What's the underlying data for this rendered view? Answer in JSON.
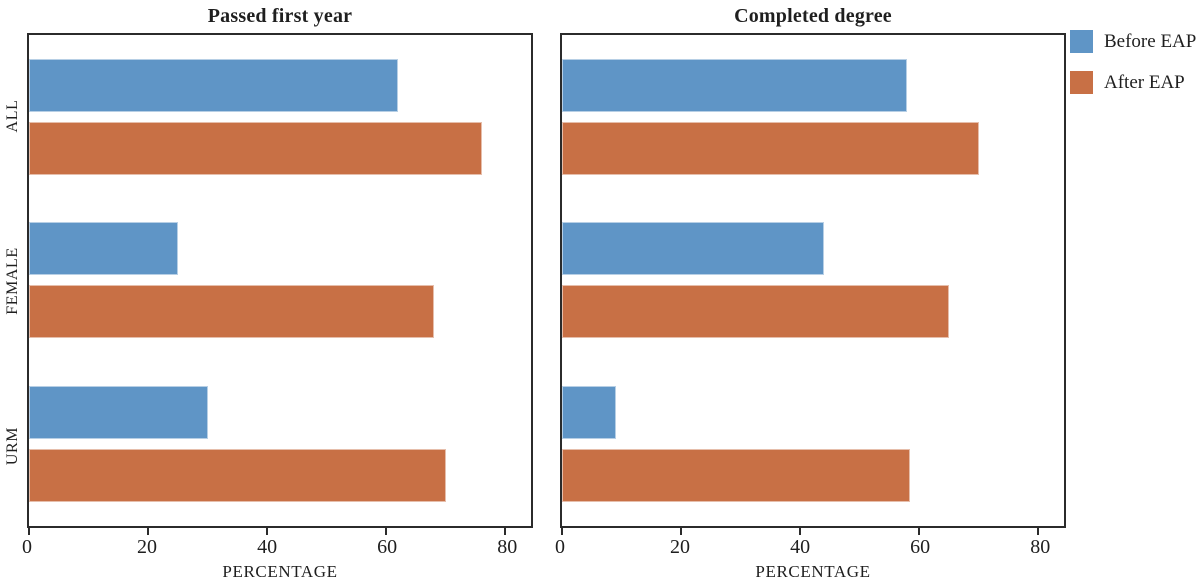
{
  "figure": {
    "legend": [
      {
        "label": "Before EAP",
        "color": "#5F95C6"
      },
      {
        "label": "After EAP",
        "color": "#C87045"
      }
    ],
    "legend_position": "outside upper right"
  },
  "chart_data": [
    {
      "type": "bar",
      "orientation": "horizontal",
      "title": "Passed first year",
      "categories": [
        "ALL",
        "FEMALE",
        "URM"
      ],
      "series": [
        {
          "name": "Before EAP",
          "color": "#5F95C6",
          "values": [
            62,
            25,
            30
          ]
        },
        {
          "name": "After EAP",
          "color": "#C87045",
          "values": [
            76,
            68,
            70
          ]
        }
      ],
      "xlabel": "PERCENTAGE",
      "xlim": [
        0,
        84.3
      ],
      "xticks": [
        0,
        20,
        40,
        60,
        80
      ],
      "grid": false
    },
    {
      "type": "bar",
      "orientation": "horizontal",
      "title": "Completed degree",
      "categories": [
        "ALL",
        "FEMALE",
        "URM"
      ],
      "series": [
        {
          "name": "Before EAP",
          "color": "#5F95C6",
          "values": [
            58,
            44,
            9
          ]
        },
        {
          "name": "After EAP",
          "color": "#C87045",
          "values": [
            70,
            65,
            58.5
          ]
        }
      ],
      "xlabel": "PERCENTAGE",
      "xlim": [
        0,
        84.3
      ],
      "xticks": [
        0,
        20,
        40,
        60,
        80
      ],
      "grid": false
    }
  ]
}
